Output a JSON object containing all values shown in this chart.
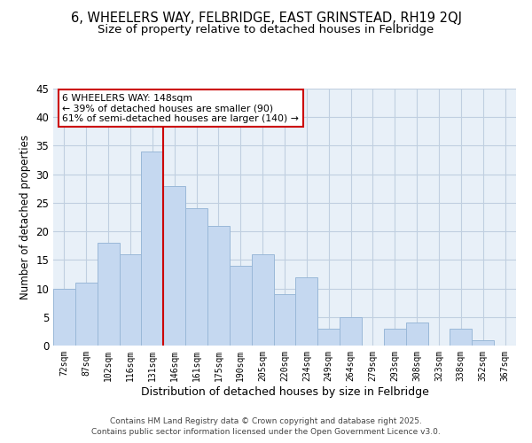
{
  "title": "6, WHEELERS WAY, FELBRIDGE, EAST GRINSTEAD, RH19 2QJ",
  "subtitle": "Size of property relative to detached houses in Felbridge",
  "xlabel": "Distribution of detached houses by size in Felbridge",
  "ylabel": "Number of detached properties",
  "bar_labels": [
    "72sqm",
    "87sqm",
    "102sqm",
    "116sqm",
    "131sqm",
    "146sqm",
    "161sqm",
    "175sqm",
    "190sqm",
    "205sqm",
    "220sqm",
    "234sqm",
    "249sqm",
    "264sqm",
    "279sqm",
    "293sqm",
    "308sqm",
    "323sqm",
    "338sqm",
    "352sqm",
    "367sqm"
  ],
  "bar_values": [
    10,
    11,
    18,
    16,
    34,
    28,
    24,
    21,
    14,
    16,
    9,
    12,
    3,
    5,
    0,
    3,
    4,
    0,
    3,
    1,
    0
  ],
  "bar_color": "#c5d8f0",
  "bar_edge_color": "#9ab8d8",
  "vline_color": "#cc0000",
  "ylim": [
    0,
    45
  ],
  "yticks": [
    0,
    5,
    10,
    15,
    20,
    25,
    30,
    35,
    40,
    45
  ],
  "annotation_title": "6 WHEELERS WAY: 148sqm",
  "annotation_line1": "← 39% of detached houses are smaller (90)",
  "annotation_line2": "61% of semi-detached houses are larger (140) →",
  "annotation_box_color": "#ffffff",
  "annotation_box_edge": "#cc0000",
  "background_color": "#ffffff",
  "plot_bg_color": "#e8f0f8",
  "grid_color": "#c0cfe0",
  "footer1": "Contains HM Land Registry data © Crown copyright and database right 2025.",
  "footer2": "Contains public sector information licensed under the Open Government Licence v3.0.",
  "title_fontsize": 10.5,
  "subtitle_fontsize": 9.5
}
